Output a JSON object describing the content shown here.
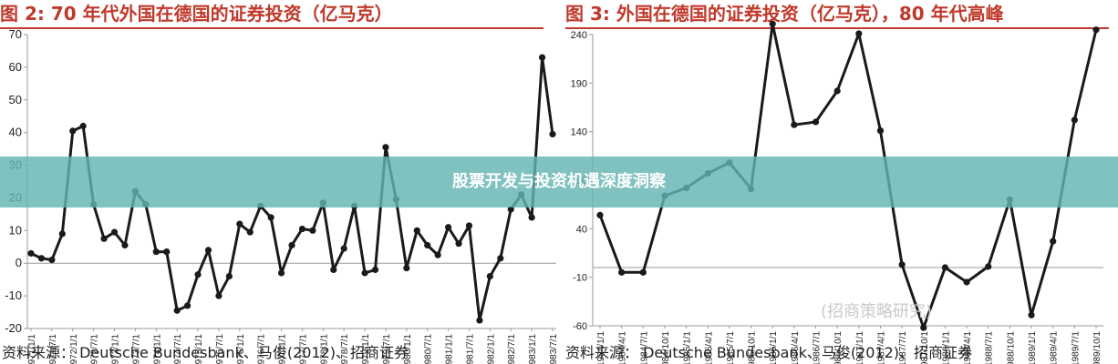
{
  "chart_data": [
    {
      "type": "line",
      "title": "图 2:   70  年代外国在德国的证券投资（亿马克）",
      "source": "资料来源：  Deutsche Bundesbank、马俊(2012)、招商证券",
      "ylim": [
        -20,
        70
      ],
      "yticks": [
        70,
        60,
        50,
        40,
        30,
        20,
        10,
        0,
        -10,
        -20
      ],
      "xtick_labels": [
        "1971/1/1",
        "1971/7/1",
        "1972/1/1",
        "1972/7/1",
        "1973/1/1",
        "1973/7/1",
        "1974/1/1",
        "1974/7/1",
        "1975/1/1",
        "1975/7/1",
        "1976/1/1",
        "1976/7/1",
        "1977/1/1",
        "1977/7/1",
        "1978/1/1",
        "1978/7/1",
        "1979/1/1",
        "1979/7/1",
        "1980/1/1",
        "1980/7/1",
        "1981/1/1",
        "1981/7/1",
        "1982/1/1",
        "1982/7/1",
        "1983/1/1",
        "1983/7/1"
      ],
      "values": [
        3,
        1.5,
        1,
        9,
        40.5,
        42,
        18,
        7.5,
        9.5,
        5.5,
        22,
        18,
        3.5,
        3.5,
        -14.5,
        -13,
        -3.5,
        4,
        -10,
        -4,
        12,
        9.5,
        17.5,
        14,
        -3,
        5.5,
        10.5,
        10,
        18.5,
        -2,
        4.5,
        17.5,
        -3,
        -2,
        35.5,
        19.5,
        -1.5,
        10,
        5.5,
        2.5,
        11,
        6,
        11.5,
        -17.5,
        -4,
        1.5,
        16.5,
        21,
        14,
        63,
        39.5
      ]
    },
    {
      "type": "line",
      "title": "图 3:  外国在德国的证券投资（亿马克），80  年代高峰",
      "source": "资料来源：  Deutsche Bundesbank、马俊(2012)、招商证券",
      "ylim": [
        -60,
        240
      ],
      "yticks": [
        240,
        190,
        140,
        90,
        40,
        -10,
        -60
      ],
      "xtick_labels": [
        "1984/1/1",
        "1984/4/1",
        "1984/7/1",
        "1984/10/1",
        "1985/1/1",
        "1985/4/1",
        "1985/7/1",
        "1985/10/1",
        "1986/1/1",
        "1986/4/1",
        "1986/7/1",
        "1986/10/1",
        "1987/1/1",
        "1987/4/1",
        "1987/7/1",
        "1987/10/1",
        "1988/1/1",
        "1988/4/1",
        "1988/7/1",
        "1988/10/1",
        "1989/1/1",
        "1989/4/1",
        "1989/7/1",
        "1989/10/1"
      ],
      "values": [
        54,
        -5,
        -5,
        74,
        82,
        97,
        108,
        81,
        251,
        147,
        150,
        182,
        241,
        141,
        3,
        -62,
        0,
        -15,
        1,
        70,
        -49,
        27,
        152,
        245
      ]
    }
  ],
  "banner": {
    "text": "股票开发与投资机遇深度洞察"
  },
  "watermark": {
    "text": "(招商策略研究)"
  }
}
